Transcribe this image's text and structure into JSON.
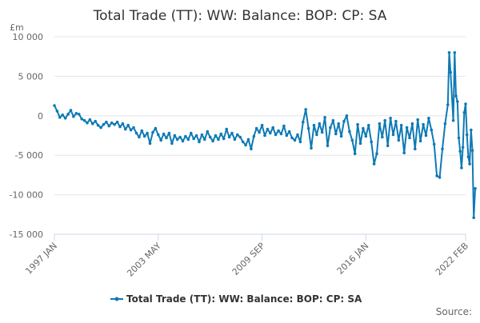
{
  "chart_data": {
    "type": "line",
    "title": "Total Trade (TT): WW: Balance: BOP: CP: SA",
    "unit_label": "£m",
    "source_label": "Source:",
    "grid": true,
    "legend_position": "bottom",
    "ylim": [
      -15000,
      10000
    ],
    "y_ticks": [
      10000,
      5000,
      0,
      -5000,
      -10000,
      -15000
    ],
    "y_tick_labels": [
      "10 000",
      "5 000",
      "0",
      "-5 000",
      "-10 000",
      "-15 000"
    ],
    "x_range": [
      "1997-01",
      "2022-02"
    ],
    "x_ticks": [
      "1997-01",
      "2003-05",
      "2009-09",
      "2016-01",
      "2022-02"
    ],
    "x_tick_labels": [
      "1997 JAN",
      "2003 MAY",
      "2009 SEP",
      "2016 JAN",
      "2022 FEB"
    ],
    "series": [
      {
        "name": "Total Trade (TT): WW: Balance: BOP: CP: SA",
        "color": "#0e7ab5",
        "points": [
          [
            "1997-01",
            1300
          ],
          [
            "1997-03",
            600
          ],
          [
            "1997-05",
            -200
          ],
          [
            "1997-07",
            100
          ],
          [
            "1997-09",
            -300
          ],
          [
            "1997-11",
            200
          ],
          [
            "1998-01",
            700
          ],
          [
            "1998-03",
            -100
          ],
          [
            "1998-05",
            300
          ],
          [
            "1998-07",
            200
          ],
          [
            "1998-09",
            -400
          ],
          [
            "1998-11",
            -600
          ],
          [
            "1999-01",
            -900
          ],
          [
            "1999-03",
            -500
          ],
          [
            "1999-05",
            -1000
          ],
          [
            "1999-07",
            -700
          ],
          [
            "1999-09",
            -1200
          ],
          [
            "1999-11",
            -1500
          ],
          [
            "2000-01",
            -1100
          ],
          [
            "2000-03",
            -800
          ],
          [
            "2000-05",
            -1300
          ],
          [
            "2000-07",
            -900
          ],
          [
            "2000-09",
            -1100
          ],
          [
            "2000-11",
            -800
          ],
          [
            "2001-01",
            -1400
          ],
          [
            "2001-03",
            -1000
          ],
          [
            "2001-05",
            -1700
          ],
          [
            "2001-07",
            -1200
          ],
          [
            "2001-09",
            -1800
          ],
          [
            "2001-11",
            -1500
          ],
          [
            "2002-01",
            -2200
          ],
          [
            "2002-03",
            -2700
          ],
          [
            "2002-05",
            -1900
          ],
          [
            "2002-07",
            -2600
          ],
          [
            "2002-09",
            -2200
          ],
          [
            "2002-11",
            -3500
          ],
          [
            "2003-01",
            -2100
          ],
          [
            "2003-03",
            -1600
          ],
          [
            "2003-05",
            -2400
          ],
          [
            "2003-07",
            -3100
          ],
          [
            "2003-09",
            -2300
          ],
          [
            "2003-11",
            -2800
          ],
          [
            "2004-01",
            -2200
          ],
          [
            "2004-03",
            -3500
          ],
          [
            "2004-05",
            -2500
          ],
          [
            "2004-07",
            -3000
          ],
          [
            "2004-09",
            -2700
          ],
          [
            "2004-11",
            -3200
          ],
          [
            "2005-01",
            -2600
          ],
          [
            "2005-03",
            -3000
          ],
          [
            "2005-05",
            -2200
          ],
          [
            "2005-07",
            -2900
          ],
          [
            "2005-09",
            -2500
          ],
          [
            "2005-11",
            -3300
          ],
          [
            "2006-01",
            -2400
          ],
          [
            "2006-03",
            -3000
          ],
          [
            "2006-05",
            -2000
          ],
          [
            "2006-07",
            -2700
          ],
          [
            "2006-09",
            -3200
          ],
          [
            "2006-11",
            -2500
          ],
          [
            "2007-01",
            -3000
          ],
          [
            "2007-03",
            -2300
          ],
          [
            "2007-05",
            -2900
          ],
          [
            "2007-07",
            -1700
          ],
          [
            "2007-09",
            -2700
          ],
          [
            "2007-11",
            -2200
          ],
          [
            "2008-01",
            -3000
          ],
          [
            "2008-03",
            -2400
          ],
          [
            "2008-05",
            -2700
          ],
          [
            "2008-07",
            -3300
          ],
          [
            "2008-09",
            -3700
          ],
          [
            "2008-11",
            -3000
          ],
          [
            "2009-01",
            -4200
          ],
          [
            "2009-03",
            -2600
          ],
          [
            "2009-05",
            -1600
          ],
          [
            "2009-07",
            -2100
          ],
          [
            "2009-09",
            -1200
          ],
          [
            "2009-11",
            -2500
          ],
          [
            "2010-01",
            -1700
          ],
          [
            "2010-03",
            -2200
          ],
          [
            "2010-05",
            -1500
          ],
          [
            "2010-07",
            -2400
          ],
          [
            "2010-09",
            -1900
          ],
          [
            "2010-11",
            -2300
          ],
          [
            "2011-01",
            -1300
          ],
          [
            "2011-03",
            -2500
          ],
          [
            "2011-05",
            -2000
          ],
          [
            "2011-07",
            -2800
          ],
          [
            "2011-09",
            -3100
          ],
          [
            "2011-11",
            -2400
          ],
          [
            "2012-01",
            -3300
          ],
          [
            "2012-03",
            -800
          ],
          [
            "2012-05",
            800
          ],
          [
            "2012-07",
            -1600
          ],
          [
            "2012-09",
            -4100
          ],
          [
            "2012-11",
            -1200
          ],
          [
            "2013-01",
            -2400
          ],
          [
            "2013-03",
            -1000
          ],
          [
            "2013-05",
            -2100
          ],
          [
            "2013-07",
            -200
          ],
          [
            "2013-09",
            -3800
          ],
          [
            "2013-11",
            -1500
          ],
          [
            "2014-01",
            -600
          ],
          [
            "2014-03",
            -2300
          ],
          [
            "2014-05",
            -1000
          ],
          [
            "2014-07",
            -2600
          ],
          [
            "2014-09",
            -700
          ],
          [
            "2014-11",
            0
          ],
          [
            "2015-01",
            -2000
          ],
          [
            "2015-03",
            -3100
          ],
          [
            "2015-05",
            -4800
          ],
          [
            "2015-07",
            -1100
          ],
          [
            "2015-09",
            -3500
          ],
          [
            "2015-11",
            -1600
          ],
          [
            "2016-01",
            -2600
          ],
          [
            "2016-03",
            -1200
          ],
          [
            "2016-05",
            -3300
          ],
          [
            "2016-07",
            -6100
          ],
          [
            "2016-09",
            -4800
          ],
          [
            "2016-11",
            -1000
          ],
          [
            "2017-01",
            -2700
          ],
          [
            "2017-03",
            -600
          ],
          [
            "2017-05",
            -3800
          ],
          [
            "2017-07",
            -300
          ],
          [
            "2017-09",
            -2400
          ],
          [
            "2017-11",
            -700
          ],
          [
            "2018-01",
            -3100
          ],
          [
            "2018-03",
            -1200
          ],
          [
            "2018-05",
            -4700
          ],
          [
            "2018-07",
            -1500
          ],
          [
            "2018-09",
            -2800
          ],
          [
            "2018-11",
            -1000
          ],
          [
            "2019-01",
            -4200
          ],
          [
            "2019-03",
            -500
          ],
          [
            "2019-05",
            -3200
          ],
          [
            "2019-07",
            -1100
          ],
          [
            "2019-09",
            -2500
          ],
          [
            "2019-11",
            -300
          ],
          [
            "2020-01",
            -1800
          ],
          [
            "2020-03",
            -3600
          ],
          [
            "2020-05",
            -7600
          ],
          [
            "2020-07",
            -7800
          ],
          [
            "2020-09",
            -4200
          ],
          [
            "2020-11",
            -1000
          ],
          [
            "2021-01",
            1400
          ],
          [
            "2021-02",
            8000
          ],
          [
            "2021-03",
            5500
          ],
          [
            "2021-05",
            -600
          ],
          [
            "2021-06",
            8000
          ],
          [
            "2021-07",
            2500
          ],
          [
            "2021-08",
            1800
          ],
          [
            "2021-09",
            -2800
          ],
          [
            "2021-10",
            -4500
          ],
          [
            "2021-11",
            -6600
          ],
          [
            "2021-12",
            -4000
          ],
          [
            "2022-01",
            400
          ],
          [
            "2022-02",
            1500
          ],
          [
            "2022-03",
            -2400
          ],
          [
            "2022-04",
            -5200
          ],
          [
            "2022-05",
            -6100
          ],
          [
            "2022-06",
            -1800
          ],
          [
            "2022-07",
            -4400
          ],
          [
            "2022-08",
            -12900
          ],
          [
            "2022-09",
            -9200
          ]
        ]
      }
    ]
  }
}
